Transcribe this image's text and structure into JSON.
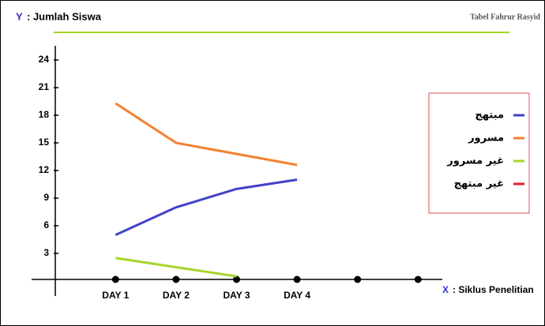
{
  "chart_data": {
    "type": "line",
    "credit": "Tabel Fahrur Rasyid",
    "y_axis_letter": "Y",
    "y_axis_label": ": Jumlah Siswa",
    "x_axis_letter": "X",
    "x_axis_label": ": Siklus Penelitian",
    "categories": [
      "DAY 1",
      "DAY 2",
      "DAY 3",
      "DAY 4",
      null,
      null
    ],
    "ylim": [
      0,
      27
    ],
    "yticks": [
      3,
      6,
      9,
      12,
      15,
      18,
      21,
      24
    ],
    "legend_position": "right",
    "series": [
      {
        "name": "مبتهج",
        "color": "#4242c8",
        "values": [
          5,
          8,
          10,
          11,
          null,
          null
        ]
      },
      {
        "name": "مسرور",
        "color": "#f4802f",
        "values": [
          19.3,
          15,
          13.8,
          12.6,
          null,
          null
        ]
      },
      {
        "name": "غير مسرور",
        "color": "#a6d62a",
        "values": [
          2.5,
          1.5,
          0.5,
          null,
          null,
          null
        ]
      },
      {
        "name": "غير مبتهج",
        "color": "#e0202a",
        "values": [
          null,
          null,
          null,
          null,
          null,
          null
        ]
      }
    ]
  }
}
